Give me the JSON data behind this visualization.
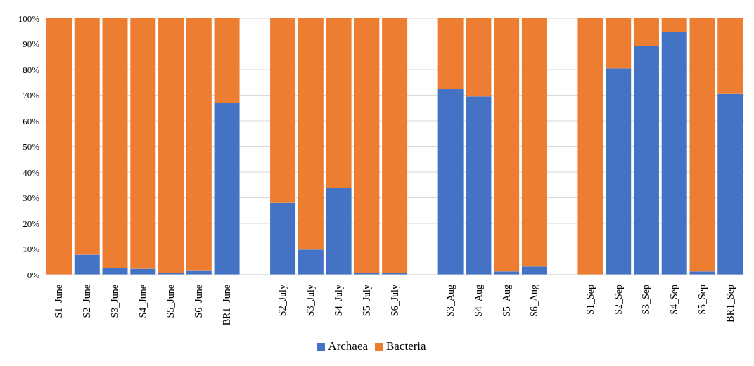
{
  "chart_data": {
    "type": "bar",
    "stacked": true,
    "categories": [
      "S1_June",
      "S2_June",
      "S3_June",
      "S4_June",
      "S5_June",
      "S6_June",
      "BR1_June",
      null,
      "S2_July",
      "S3_July",
      "S4_July",
      "S5_July",
      "S6_July",
      null,
      "S3_Aug",
      "S4_Aug",
      "S5_Aug",
      "S6_Aug",
      null,
      "S1_Sep",
      "S2_Sep",
      "S3_Sep",
      "S4_Sep",
      "S5_Sep",
      "BR1_Sep"
    ],
    "series": [
      {
        "name": "Archaea",
        "color": "#4472c4",
        "values": [
          null,
          7.8,
          2.5,
          2.3,
          0.7,
          1.5,
          67,
          null,
          28,
          9.8,
          34,
          0.8,
          0.8,
          null,
          72.5,
          69.5,
          1.3,
          3.2,
          null,
          null,
          80.5,
          89.2,
          94.5,
          1.3,
          70.5
        ]
      },
      {
        "name": "Bacteria",
        "color": "#ed7d31",
        "values": [
          100,
          92.2,
          97.5,
          97.7,
          99.3,
          98.5,
          33,
          null,
          72,
          90.2,
          66,
          99.2,
          99.2,
          null,
          27.5,
          30.5,
          98.7,
          96.8,
          null,
          100,
          19.5,
          10.8,
          5.5,
          98.7,
          29.5
        ]
      }
    ],
    "ylim": [
      0,
      100
    ],
    "yticks": [
      {
        "value": 0,
        "label": "0%"
      },
      {
        "value": 10,
        "label": "10%"
      },
      {
        "value": 20,
        "label": "20%"
      },
      {
        "value": 30,
        "label": "30%"
      },
      {
        "value": 40,
        "label": "40%"
      },
      {
        "value": 50,
        "label": "50%"
      },
      {
        "value": 60,
        "label": "60%"
      },
      {
        "value": 70,
        "label": "70%"
      },
      {
        "value": 80,
        "label": "80%"
      },
      {
        "value": 90,
        "label": "90%"
      },
      {
        "value": 100,
        "label": "100%"
      }
    ],
    "grid": "y",
    "legend": "bottom"
  }
}
